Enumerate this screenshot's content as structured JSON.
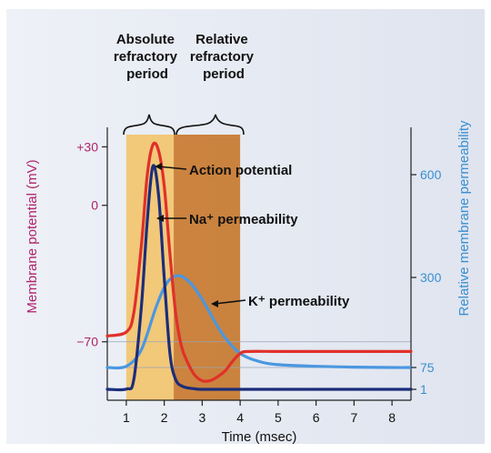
{
  "chart_data": {
    "type": "line",
    "xlabel": "Time (msec)",
    "ylabel_left": "Membrane potential (mV)",
    "ylabel_right": "Relative membrane permeability",
    "x_ticks": [
      "1",
      "2",
      "3",
      "4",
      "5",
      "6",
      "7",
      "8"
    ],
    "xlim": [
      0.5,
      8.5
    ],
    "y_left_ticks": [
      "+30",
      "0",
      "−70"
    ],
    "y_left_tick_values": [
      30,
      0,
      -70
    ],
    "ylim_left": [
      -100,
      40
    ],
    "y_right_ticks": [
      "600",
      "300",
      "75",
      "1"
    ],
    "y_right_tick_values": [
      600,
      300,
      75,
      1
    ],
    "periods": [
      {
        "label": "Absolute refractory period",
        "x_start": 1.0,
        "x_end": 2.25,
        "color": "#f2c46e"
      },
      {
        "label": "Relative refractory period",
        "x_start": 2.25,
        "x_end": 4.0,
        "color": "#c8792f"
      }
    ],
    "annotations": {
      "action_potential": "Action potential",
      "na_permeability": "Na⁺ permeability",
      "k_permeability": "K⁺ permeability"
    },
    "series": [
      {
        "name": "Action potential",
        "color": "#e0302a",
        "axis": "left",
        "x": [
          0.5,
          1.0,
          1.2,
          1.4,
          1.55,
          1.7,
          1.85,
          2.0,
          2.15,
          2.3,
          2.45,
          2.6,
          2.8,
          3.0,
          3.2,
          3.4,
          3.6,
          3.8,
          4.0,
          4.2,
          5,
          6,
          7,
          8,
          8.5
        ],
        "y": [
          -67,
          -65,
          -55,
          -20,
          15,
          31,
          28,
          10,
          -25,
          -55,
          -72,
          -80,
          -87,
          -90,
          -90,
          -88,
          -85,
          -80,
          -76,
          -75,
          -75,
          -75,
          -75,
          -75,
          -75
        ]
      },
      {
        "name": "Na⁺ permeability",
        "color": "#1c2d7a",
        "axis": "right",
        "x": [
          0.5,
          1.0,
          1.2,
          1.4,
          1.55,
          1.7,
          1.85,
          2.0,
          2.15,
          2.3,
          2.5,
          2.8,
          3.0,
          4.0,
          5,
          6,
          7,
          8,
          8.5
        ],
        "y": [
          1,
          2,
          35,
          230,
          460,
          625,
          540,
          300,
          110,
          35,
          10,
          3,
          1,
          1,
          1,
          1,
          1,
          1,
          1
        ]
      },
      {
        "name": "K⁺ permeability",
        "color": "#4a97e0",
        "axis": "right",
        "x": [
          0.5,
          1.0,
          1.4,
          1.8,
          2.1,
          2.4,
          2.7,
          3.0,
          3.3,
          3.6,
          4.0,
          4.5,
          5,
          6,
          7,
          8,
          8.5
        ],
        "y": [
          75,
          78,
          120,
          230,
          290,
          305,
          285,
          245,
          195,
          150,
          110,
          90,
          82,
          78,
          76,
          75,
          75
        ]
      }
    ]
  }
}
